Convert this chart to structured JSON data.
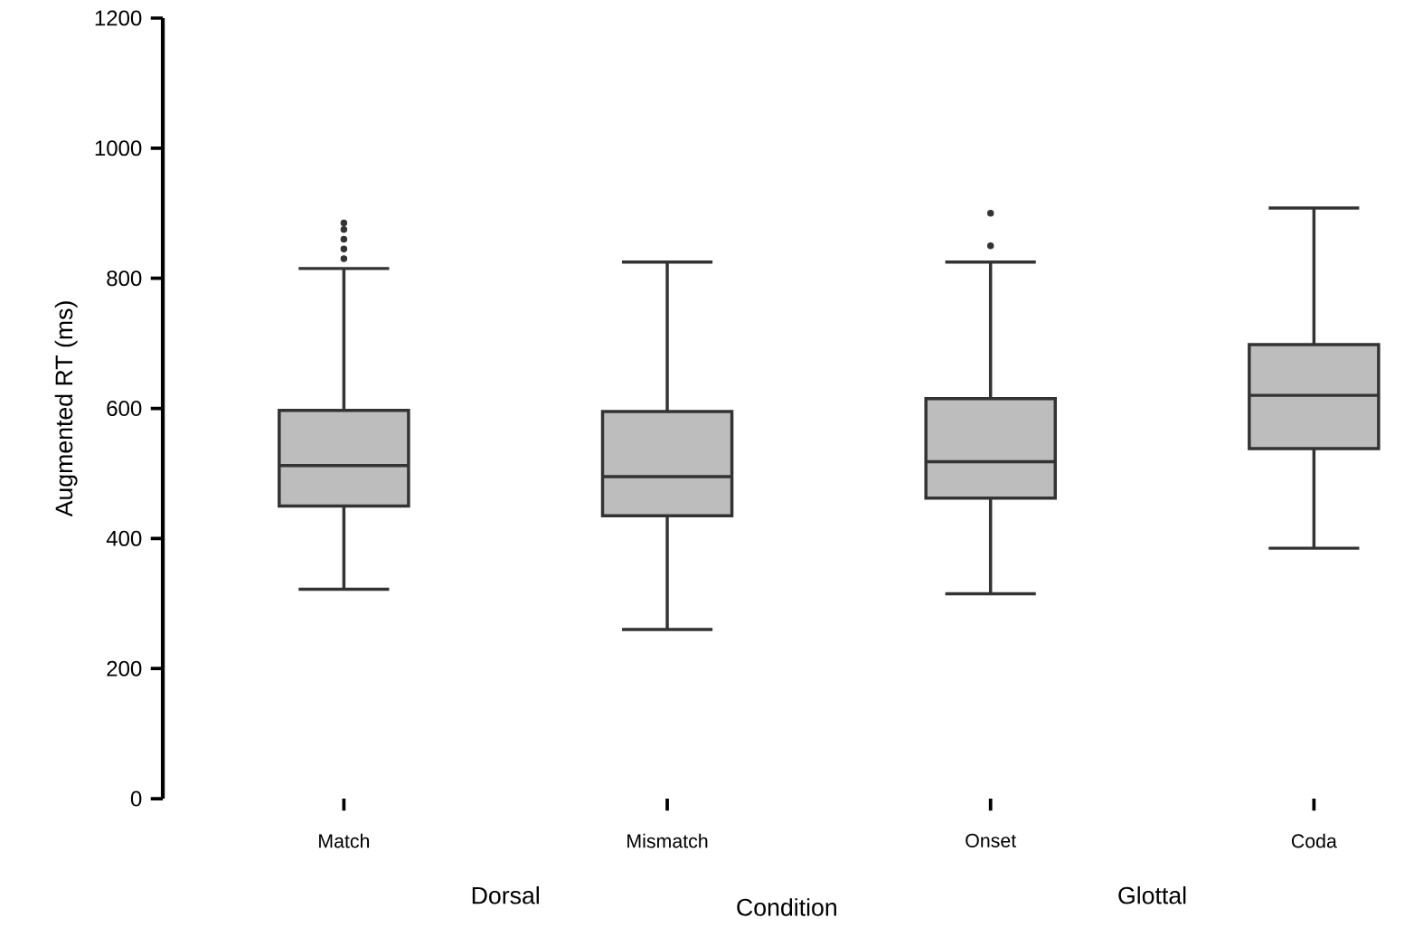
{
  "chart_data": {
    "type": "box",
    "xlabel": "Condition",
    "ylabel": "Augmented RT (ms)",
    "categories": [
      "Match",
      "Mismatch",
      "Onset",
      "Coda"
    ],
    "series": [
      {
        "color": "#bdbdbd",
        "boxes": [
          {
            "low": 322,
            "q1": 450,
            "median": 512,
            "q3": 597,
            "high": 815,
            "outliers": [
              830,
              845,
              860,
              875,
              885
            ]
          },
          {
            "low": 260,
            "q1": 435,
            "median": 495,
            "q3": 595,
            "high": 825
          },
          {
            "low": 315,
            "q1": 462,
            "median": 518,
            "q3": 615,
            "high": 825,
            "outliers": [
              850,
              900
            ]
          },
          {
            "low": 385,
            "q1": 538,
            "median": 620,
            "q3": 698,
            "high": 908
          }
        ]
      }
    ],
    "ylim": [
      0,
      1200
    ],
    "yticks": [
      0,
      200,
      400,
      600,
      800,
      1000,
      1200
    ],
    "annotations": [
      "Dorsal",
      "Glottal"
    ],
    "grid": false
  }
}
